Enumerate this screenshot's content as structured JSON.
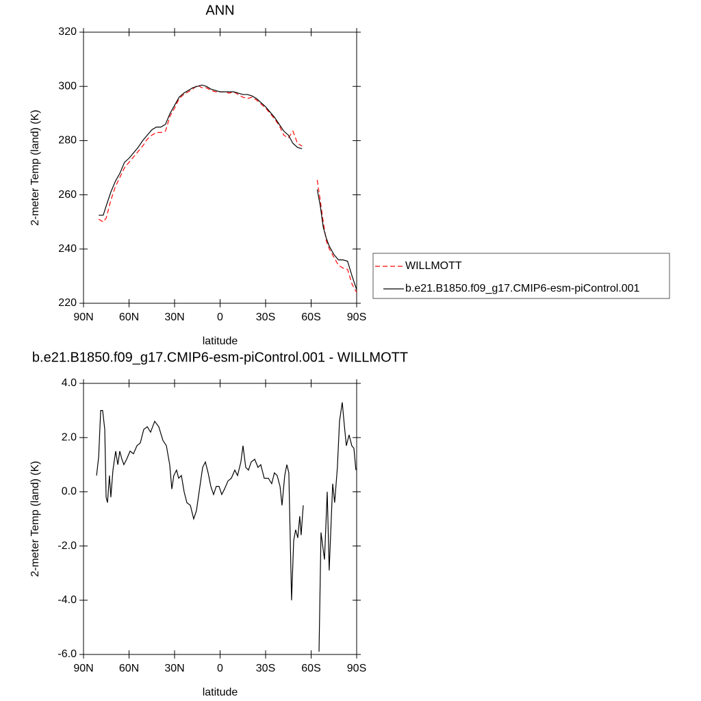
{
  "chart_data": [
    {
      "type": "line",
      "title": "ANN",
      "xlabel": "latitude",
      "ylabel": "2-meter Temp (land) (K)",
      "xlim": [
        90,
        -90
      ],
      "xticks": [
        {
          "value": 90,
          "label": "90N"
        },
        {
          "value": 60,
          "label": "60N"
        },
        {
          "value": 30,
          "label": "30N"
        },
        0,
        {
          "value": -30,
          "label": "30S"
        },
        {
          "value": -60,
          "label": "60S"
        },
        {
          "value": -90,
          "label": "90S"
        }
      ],
      "ylim": [
        220,
        320
      ],
      "yticks": [
        220,
        240,
        260,
        280,
        300,
        320
      ],
      "legend_position": "right",
      "x": [
        80,
        77,
        75,
        72,
        69,
        66,
        63,
        60,
        57,
        54,
        51,
        48,
        45,
        42,
        39,
        36,
        33,
        30,
        27,
        24,
        21,
        18,
        15,
        12,
        9,
        6,
        3,
        0,
        -3,
        -6,
        -9,
        -12,
        -15,
        -18,
        -21,
        -24,
        -27,
        -30,
        -33,
        -36,
        -39,
        -42,
        -45,
        -48,
        -51,
        -54,
        -60,
        -64,
        -66,
        -68,
        -70,
        -72,
        -75,
        -78,
        -81,
        -84,
        -87,
        -90
      ],
      "series": [
        {
          "name": "WILLMOTT",
          "color": "#ff0000",
          "dashed": true,
          "values": [
            251,
            250,
            251.5,
            258,
            263,
            266.5,
            270,
            272,
            274,
            276,
            278,
            280.5,
            282,
            283,
            283,
            283.5,
            289,
            292,
            295.5,
            297,
            298,
            299,
            300.5,
            299.5,
            299.5,
            298.5,
            298,
            298,
            298,
            297.5,
            298,
            297,
            296,
            295.5,
            296,
            295,
            293.5,
            292,
            290,
            288,
            285.5,
            282,
            281,
            283.5,
            279,
            278,
            null,
            265.5,
            258,
            250,
            243,
            240,
            237,
            234,
            233,
            232.5,
            227,
            224
          ]
        },
        {
          "name": "b.e21.B1850.f09_g17.CMIP6-esm-piControl.001",
          "color": "#000000",
          "dashed": false,
          "values": [
            252.5,
            252.5,
            256,
            261,
            265,
            268,
            272,
            273.5,
            275.5,
            277.5,
            280,
            282,
            284,
            285,
            285,
            286,
            290,
            293,
            296,
            297.5,
            298.5,
            299.5,
            300,
            300.5,
            300,
            299,
            298.5,
            298,
            298,
            298,
            298,
            297.5,
            297,
            297,
            296.5,
            295.5,
            294,
            292.5,
            290.5,
            288.5,
            286,
            283.5,
            282,
            279,
            277.5,
            277,
            null,
            262,
            256,
            248,
            244,
            241,
            238,
            236,
            236,
            235.5,
            230,
            225
          ]
        }
      ]
    },
    {
      "type": "line",
      "title": "b.e21.B1850.f09_g17.CMIP6-esm-piControl.001 - WILLMOTT",
      "xlabel": "latitude",
      "ylabel": "2-meter Temp (land) (K)",
      "xlim": [
        90,
        -90
      ],
      "xticks": [
        {
          "value": 90,
          "label": "90N"
        },
        {
          "value": 60,
          "label": "60N"
        },
        {
          "value": 30,
          "label": "30N"
        },
        0,
        {
          "value": -30,
          "label": "30S"
        },
        {
          "value": -60,
          "label": "60S"
        },
        {
          "value": -90,
          "label": "90S"
        }
      ],
      "ylim": [
        -6,
        4
      ],
      "yticks": [
        {
          "value": -6,
          "label": "-6.0"
        },
        {
          "value": -4,
          "label": "-4.0"
        },
        {
          "value": -2,
          "label": "-2.0"
        },
        {
          "value": 0,
          "label": "0.0"
        },
        {
          "value": 2,
          "label": "2.0"
        },
        {
          "value": 4,
          "label": "4.0"
        }
      ],
      "color": "#000000",
      "x": [
        81.4,
        80,
        78.7,
        77.4,
        76,
        75.1,
        74.2,
        72.9,
        72,
        70.6,
        68.8,
        67.4,
        66.1,
        64.7,
        63.4,
        61.6,
        59.3,
        57.1,
        54.8,
        52.6,
        50.3,
        48,
        45.8,
        43.1,
        40.4,
        37.7,
        35.4,
        33.2,
        31.8,
        30.5,
        28.7,
        27.3,
        25.5,
        23.7,
        21.9,
        19.6,
        17.4,
        15.6,
        13.3,
        11.5,
        9.7,
        7.9,
        6.1,
        4.3,
        2.5,
        0.7,
        -1.1,
        -2.9,
        -5.2,
        -7.4,
        -9.7,
        -11.5,
        -13.7,
        -15.1,
        -16.9,
        -18.7,
        -20.5,
        -22.8,
        -25,
        -26.8,
        -29.1,
        -31.8,
        -34,
        -35.8,
        -37.6,
        -39.5,
        -40.8,
        -42.6,
        -44,
        -45.3,
        -47.1,
        -48.5,
        -49.8,
        -51.2,
        -52.5,
        -53.4,
        -54.8,
        -60,
        -65.2,
        -66.5,
        -68.8,
        -70.6,
        -71.9,
        -74.2,
        -75.5,
        -77.3,
        -78.7,
        -80.5,
        -81.8,
        -83.2,
        -85,
        -86.8,
        -88.2,
        -89.5
      ],
      "values": [
        0.6,
        1.3,
        3.0,
        3.0,
        2.3,
        -0.2,
        -0.4,
        0.6,
        -0.2,
        0.8,
        1.5,
        1.0,
        1.5,
        1.2,
        1.0,
        1.2,
        1.5,
        1.4,
        1.7,
        1.8,
        2.3,
        2.4,
        2.2,
        2.6,
        2.4,
        1.9,
        1.7,
        1.0,
        0.1,
        0.6,
        0.8,
        0.5,
        0.6,
        0.0,
        -0.4,
        -0.5,
        -1.0,
        -0.7,
        0.2,
        0.9,
        1.1,
        0.7,
        0.2,
        -0.1,
        0.2,
        0.2,
        -0.1,
        0.1,
        0.4,
        0.5,
        0.8,
        0.6,
        1.1,
        1.7,
        0.9,
        0.8,
        1.1,
        1.2,
        0.9,
        1.0,
        0.5,
        0.5,
        0.3,
        0.7,
        0.6,
        0.2,
        -0.5,
        0.6,
        1.0,
        0.7,
        -4.0,
        -1.8,
        -1.4,
        -1.7,
        -0.9,
        -1.6,
        -0.5,
        null,
        -5.9,
        -1.5,
        -2.5,
        0.0,
        -2.9,
        0.3,
        -0.4,
        0.9,
        2.6,
        3.3,
        2.5,
        1.7,
        2.1,
        1.7,
        1.6,
        0.8
      ]
    }
  ]
}
